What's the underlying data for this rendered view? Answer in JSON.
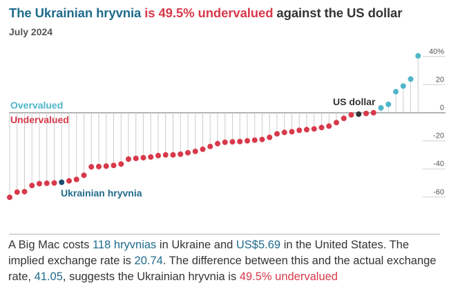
{
  "title": {
    "part1": "The Ukrainian hryvnia",
    "part2": " is 49.5% undervalued",
    "part3": " against the US dollar"
  },
  "subtitle": "July 2024",
  "colors": {
    "over": "#4fb6c9",
    "under": "#d8394a",
    "highlight": "#1f4e6e",
    "dollar": "#333333",
    "text_blue": "#1f6b8c"
  },
  "labels": {
    "overvalued": "Overvalued",
    "undervalued": "Undervalued",
    "hryvnia": "Ukrainian hryvnia",
    "dollar": "US dollar"
  },
  "summary": {
    "s1": "A Big Mac costs ",
    "v1": "118 hryvnias",
    "s2": " in Ukraine and ",
    "v2": "US$5.69",
    "s3": " in the United States. The implied exchange rate is ",
    "v3": "20.74",
    "s4": ". The difference between this and the actual exchange rate, ",
    "v4": "41.05",
    "s5": ", suggests the Ukrainian hryvnia is ",
    "v5": "49.5% undervalued"
  },
  "chart_data": {
    "type": "scatter",
    "ylabel": "",
    "ylim": [
      -65,
      45
    ],
    "yticks": [
      {
        "value": 40,
        "label": "40%"
      },
      {
        "value": 20,
        "label": "20"
      },
      {
        "value": 0,
        "label": "0"
      },
      {
        "value": -20,
        "label": "-20"
      },
      {
        "value": -40,
        "label": "-40"
      },
      {
        "value": -60,
        "label": "-60"
      }
    ],
    "highlight_index": 7,
    "dollar_index": 47,
    "values": [
      -60.2,
      -56.5,
      -56.2,
      -51.8,
      -50.5,
      -50.2,
      -50.0,
      -49.5,
      -48.5,
      -47.5,
      -44.5,
      -38.5,
      -38.3,
      -38.0,
      -37.5,
      -36.5,
      -33.0,
      -32.5,
      -32.0,
      -31.5,
      -30.5,
      -30.0,
      -30.0,
      -29.5,
      -28.5,
      -27.5,
      -26.0,
      -24.0,
      -22.0,
      -21.0,
      -20.7,
      -20.5,
      -20.0,
      -19.5,
      -19.0,
      -17.5,
      -15.0,
      -14.0,
      -13.5,
      -12.5,
      -12.0,
      -11.5,
      -10.5,
      -9.5,
      -7.0,
      -4.0,
      -1.5,
      -1.0,
      -0.5,
      0.0,
      3.5,
      6.0,
      15.0,
      19.0,
      24.0,
      40.5
    ]
  }
}
